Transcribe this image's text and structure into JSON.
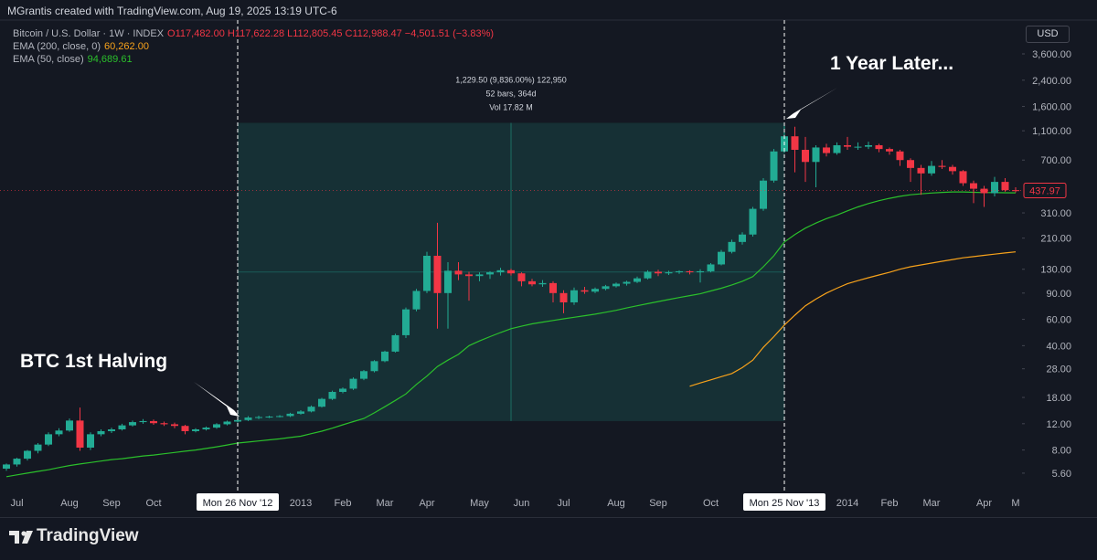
{
  "header": {
    "credit": "MGrantis created with TradingView.com, Aug 19, 2025 13:19 UTC-6"
  },
  "chart_data": {
    "type": "candlestick",
    "symbol": "Bitcoin / U.S. Dollar · 1W · INDEX",
    "ohlc_legend": "O117,482.00 H117,622.28 L112,805.45 C112,988.47 −4,501.51 (−3.83%)",
    "currency": "USD",
    "categories": [
      null,
      "Jul",
      null,
      null,
      null,
      null,
      "Aug",
      null,
      null,
      null,
      "Sep",
      null,
      null,
      null,
      "Oct",
      null,
      null,
      null,
      null,
      null,
      null,
      null,
      "Mon 26 Nov '12",
      null,
      null,
      null,
      null,
      null,
      "2013",
      null,
      null,
      null,
      "Feb",
      null,
      null,
      null,
      "Mar",
      null,
      null,
      null,
      "Apr",
      null,
      null,
      null,
      null,
      "May",
      null,
      null,
      null,
      "Jun",
      null,
      null,
      null,
      "Jul",
      null,
      null,
      null,
      null,
      "Aug",
      null,
      null,
      null,
      "Sep",
      null,
      null,
      null,
      null,
      "Oct",
      null,
      null,
      null,
      null,
      null,
      null,
      "Mon 25 Nov '13",
      null,
      null,
      null,
      null,
      null,
      "2014",
      null,
      null,
      null,
      "Feb",
      null,
      null,
      null,
      "Mar",
      null,
      null,
      null,
      null,
      "Apr",
      null,
      null,
      "M"
    ],
    "open": [
      6.0,
      6.4,
      7.0,
      7.9,
      8.7,
      10.2,
      10.8,
      12.6,
      8.3,
      10.2,
      10.7,
      11.0,
      11.7,
      12.3,
      12.5,
      12.1,
      11.9,
      11.6,
      10.7,
      11.0,
      11.3,
      11.9,
      12.4,
      12.7,
      13.2,
      13.3,
      13.4,
      13.5,
      14.0,
      14.5,
      15.6,
      17.6,
      19.6,
      20.6,
      24.0,
      27.0,
      31.5,
      36.5,
      47,
      70,
      93,
      160,
      90,
      127,
      120,
      117,
      120,
      124,
      128,
      122,
      108,
      103,
      105,
      90,
      78,
      94,
      92,
      96,
      100,
      104,
      107,
      113,
      125,
      122,
      124,
      126,
      124,
      126,
      140,
      170,
      198,
      222,
      330,
      510,
      800,
      1010,
      820,
      680,
      850,
      780,
      880,
      860,
      860,
      880,
      830,
      800,
      700,
      620,
      570,
      640,
      630,
      590,
      490,
      450,
      420,
      500,
      440
    ],
    "high": [
      6.5,
      7.1,
      8.0,
      8.9,
      10.5,
      11.2,
      13.0,
      15.4,
      10.5,
      11.0,
      11.3,
      12.0,
      12.6,
      12.9,
      12.8,
      12.4,
      12.2,
      11.8,
      11.2,
      11.5,
      12.1,
      12.6,
      12.9,
      13.5,
      13.6,
      13.6,
      13.7,
      14.2,
      14.8,
      15.9,
      17.9,
      20.0,
      21.0,
      24.5,
      27.5,
      32.0,
      37.0,
      48,
      72,
      96,
      170,
      266,
      145,
      145,
      125,
      124,
      126,
      133,
      131,
      124,
      112,
      110,
      108,
      94,
      98,
      99,
      98,
      102,
      106,
      109,
      116,
      128,
      129,
      127,
      128,
      128,
      130,
      143,
      175,
      205,
      230,
      340,
      530,
      830,
      1242,
      1170,
      1000,
      880,
      900,
      920,
      1000,
      920,
      930,
      900,
      850,
      820,
      720,
      650,
      690,
      700,
      650,
      600,
      510,
      470,
      540,
      530,
      460
    ],
    "low": [
      5.8,
      6.2,
      6.8,
      7.6,
      8.5,
      9.9,
      10.6,
      7.9,
      8.0,
      9.9,
      10.4,
      10.8,
      11.5,
      12.0,
      11.8,
      11.6,
      11.2,
      10.2,
      10.5,
      10.8,
      11.1,
      11.7,
      12.2,
      12.5,
      12.9,
      13.1,
      13.2,
      13.3,
      13.8,
      14.3,
      15.4,
      17.3,
      19.2,
      20.2,
      23.5,
      26.5,
      31.0,
      36.0,
      45,
      68,
      90,
      52,
      52,
      110,
      80,
      108,
      112,
      118,
      118,
      100,
      100,
      99,
      78,
      66,
      75,
      89,
      90,
      94,
      98,
      101,
      105,
      111,
      117,
      119,
      121,
      120,
      106,
      124,
      138,
      166,
      190,
      215,
      320,
      495,
      780,
      580,
      500,
      460,
      740,
      760,
      820,
      820,
      830,
      790,
      760,
      640,
      500,
      410,
      550,
      610,
      560,
      470,
      360,
      340,
      400,
      430,
      425
    ],
    "close": [
      6.4,
      7.0,
      7.9,
      8.7,
      10.2,
      10.8,
      12.6,
      8.3,
      10.2,
      10.7,
      11.0,
      11.7,
      12.3,
      12.5,
      12.1,
      11.9,
      11.6,
      10.7,
      11.0,
      11.3,
      11.9,
      12.4,
      12.7,
      13.2,
      13.3,
      13.4,
      13.5,
      14.0,
      14.5,
      15.6,
      17.6,
      19.6,
      20.6,
      24.0,
      27.0,
      31.5,
      36.5,
      47,
      70,
      93,
      160,
      90,
      127,
      120,
      117,
      120,
      124,
      128,
      122,
      108,
      103,
      105,
      90,
      78,
      94,
      92,
      96,
      100,
      104,
      107,
      113,
      125,
      122,
      124,
      126,
      124,
      126,
      140,
      170,
      198,
      222,
      330,
      510,
      800,
      1010,
      820,
      680,
      850,
      780,
      880,
      860,
      860,
      880,
      830,
      800,
      700,
      620,
      570,
      640,
      630,
      590,
      490,
      450,
      420,
      500,
      440,
      437.97
    ],
    "up_color": "#22ab94",
    "down_color": "#f23645",
    "overlays": [
      {
        "type": "line",
        "name": "EMA (200, close, 0)",
        "legend_value": "60,262.00",
        "color": "#f7a21b",
        "values": [
          null,
          null,
          null,
          null,
          null,
          null,
          null,
          null,
          null,
          null,
          null,
          null,
          null,
          null,
          null,
          null,
          null,
          null,
          null,
          null,
          null,
          null,
          null,
          null,
          null,
          null,
          null,
          null,
          null,
          null,
          null,
          null,
          null,
          null,
          null,
          null,
          null,
          null,
          null,
          null,
          null,
          null,
          null,
          null,
          null,
          null,
          null,
          null,
          null,
          null,
          null,
          null,
          null,
          null,
          null,
          null,
          null,
          null,
          null,
          null,
          null,
          null,
          null,
          null,
          null,
          21.4,
          22.5,
          23.6,
          24.8,
          26,
          28.5,
          32,
          39,
          46,
          55,
          64,
          74,
          82,
          90,
          97,
          104,
          109,
          114,
          119,
          124,
          130,
          135,
          139,
          143,
          147,
          151,
          155,
          158,
          161,
          164,
          167,
          170
        ]
      },
      {
        "type": "line",
        "name": "EMA (50, close)",
        "legend_value": "94,689.61",
        "color": "#2bc02b",
        "values": [
          5.3,
          5.45,
          5.6,
          5.75,
          5.9,
          6.1,
          6.3,
          6.45,
          6.6,
          6.75,
          6.9,
          7.0,
          7.15,
          7.3,
          7.4,
          7.55,
          7.7,
          7.85,
          8.0,
          8.2,
          8.4,
          8.65,
          8.9,
          9.05,
          9.2,
          9.35,
          9.5,
          9.7,
          9.9,
          10.3,
          10.7,
          11.2,
          11.8,
          12.4,
          13.0,
          14.2,
          15.6,
          17.2,
          19,
          22,
          25,
          29,
          32,
          35,
          40,
          43,
          46,
          49,
          52,
          54,
          56,
          57.5,
          59,
          60.5,
          62,
          63.5,
          65,
          67,
          69,
          71.5,
          74,
          76.5,
          79,
          81.5,
          84,
          86.5,
          89,
          93,
          97,
          102,
          108,
          116,
          135,
          160,
          198,
          222,
          245,
          265,
          284,
          300,
          320,
          340,
          358,
          374,
          388,
          400,
          410,
          416,
          421,
          425,
          428,
          428,
          426,
          424,
          424,
          423,
          422
        ]
      }
    ],
    "log_scale": true,
    "ylim": [
      4.22,
      6063
    ],
    "yticks": [
      {
        "value": 5.6,
        "label": "5.60"
      },
      {
        "value": 8,
        "label": "8.00"
      },
      {
        "value": 12,
        "label": "12.00"
      },
      {
        "value": 18,
        "label": "18.00"
      },
      {
        "value": 28,
        "label": "28.00"
      },
      {
        "value": 40,
        "label": "40.00"
      },
      {
        "value": 60,
        "label": "60.00"
      },
      {
        "value": 90,
        "label": "90.00"
      },
      {
        "value": 130,
        "label": "130.00"
      },
      {
        "value": 210,
        "label": "210.00"
      },
      {
        "value": 310,
        "label": "310.00"
      },
      {
        "value": 700,
        "label": "700.00"
      },
      {
        "value": 1100,
        "label": "1,100.00"
      },
      {
        "value": 1600,
        "label": "1,600.00"
      },
      {
        "value": 2400,
        "label": "2,400.00"
      },
      {
        "value": 3600,
        "label": "3,600.00"
      }
    ],
    "grid": false,
    "markers": [
      22,
      74
    ],
    "measure": {
      "low": 12.5,
      "high": 1242,
      "color": "#22ab94",
      "lines": [
        "1,229.50 (9,836.00%) 122,950",
        "52 bars, 364d",
        "Vol 17.82 M"
      ]
    },
    "annotations": [
      "BTC 1st Halving",
      "1 Year Later..."
    ]
  },
  "footer": {
    "brand": "TradingView"
  }
}
